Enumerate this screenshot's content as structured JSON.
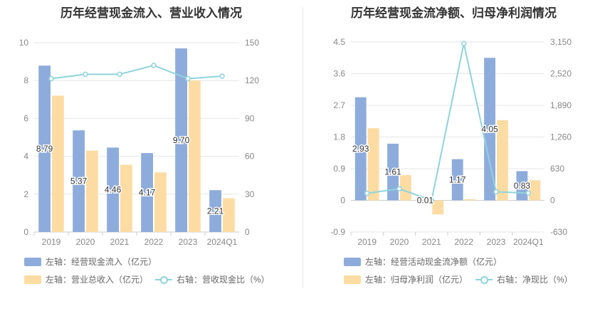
{
  "colors": {
    "blue": "#8eacdb",
    "orange": "#fddca3",
    "line": "#8fd3dc"
  },
  "chart_data": [
    {
      "type": "bar",
      "title": "历年经营现金流入、营业收入情况",
      "categories": [
        "2019",
        "2020",
        "2021",
        "2022",
        "2023",
        "2024Q1"
      ],
      "left_axis": {
        "ylim": [
          0,
          10
        ],
        "ticks": [
          "0",
          "2",
          "4",
          "6",
          "8",
          "10"
        ]
      },
      "right_axis": {
        "ylim": [
          0,
          150
        ],
        "ticks": [
          "0",
          "30",
          "60",
          "90",
          "120",
          "150"
        ]
      },
      "series": [
        {
          "name": "左轴：经营现金流入（亿元）",
          "axis": "left",
          "kind": "bar",
          "values": [
            8.79,
            5.37,
            4.46,
            4.17,
            9.7,
            2.21
          ],
          "labels": [
            "8.79",
            "5.37",
            "4.46",
            "4.17",
            "9.70",
            "2.21"
          ]
        },
        {
          "name": "左轴：营业总收入（亿元）",
          "axis": "left",
          "kind": "bar",
          "values": [
            7.2,
            4.3,
            3.55,
            3.15,
            8.0,
            1.78
          ]
        },
        {
          "name": "右轴：营收现金比（%）",
          "axis": "right",
          "kind": "line",
          "values": [
            121.5,
            125,
            125,
            132,
            121.5,
            123.5
          ]
        }
      ]
    },
    {
      "type": "bar",
      "title": "历年经营现金流净额、归母净利润情况",
      "categories": [
        "2019",
        "2020",
        "2021",
        "2022",
        "2023",
        "2024Q1"
      ],
      "left_axis": {
        "ylim": [
          -0.9,
          4.5
        ],
        "ticks": [
          "-0.9",
          "0",
          "0.9",
          "1.8",
          "2.7",
          "3.6",
          "4.5"
        ]
      },
      "right_axis": {
        "ylim": [
          -630,
          3150
        ],
        "ticks": [
          "-630",
          "0",
          "630",
          "1,260",
          "1,890",
          "2,520",
          "3,150"
        ]
      },
      "series": [
        {
          "name": "左轴：经营活动现金流净额（亿元）",
          "axis": "left",
          "kind": "bar",
          "values": [
            2.93,
            1.61,
            0.01,
            1.17,
            4.05,
            0.83
          ],
          "labels": [
            "2.93",
            "1.61",
            "0.01",
            "1.17",
            "4.05",
            "0.83"
          ]
        },
        {
          "name": "左轴：归母净利润（亿元）",
          "axis": "left",
          "kind": "bar",
          "values": [
            2.05,
            0.72,
            -0.4,
            0.03,
            2.28,
            0.57
          ]
        },
        {
          "name": "右轴：净现比（%）",
          "axis": "right",
          "kind": "line",
          "values": [
            140,
            230,
            0,
            3120,
            170,
            145
          ]
        }
      ]
    }
  ]
}
